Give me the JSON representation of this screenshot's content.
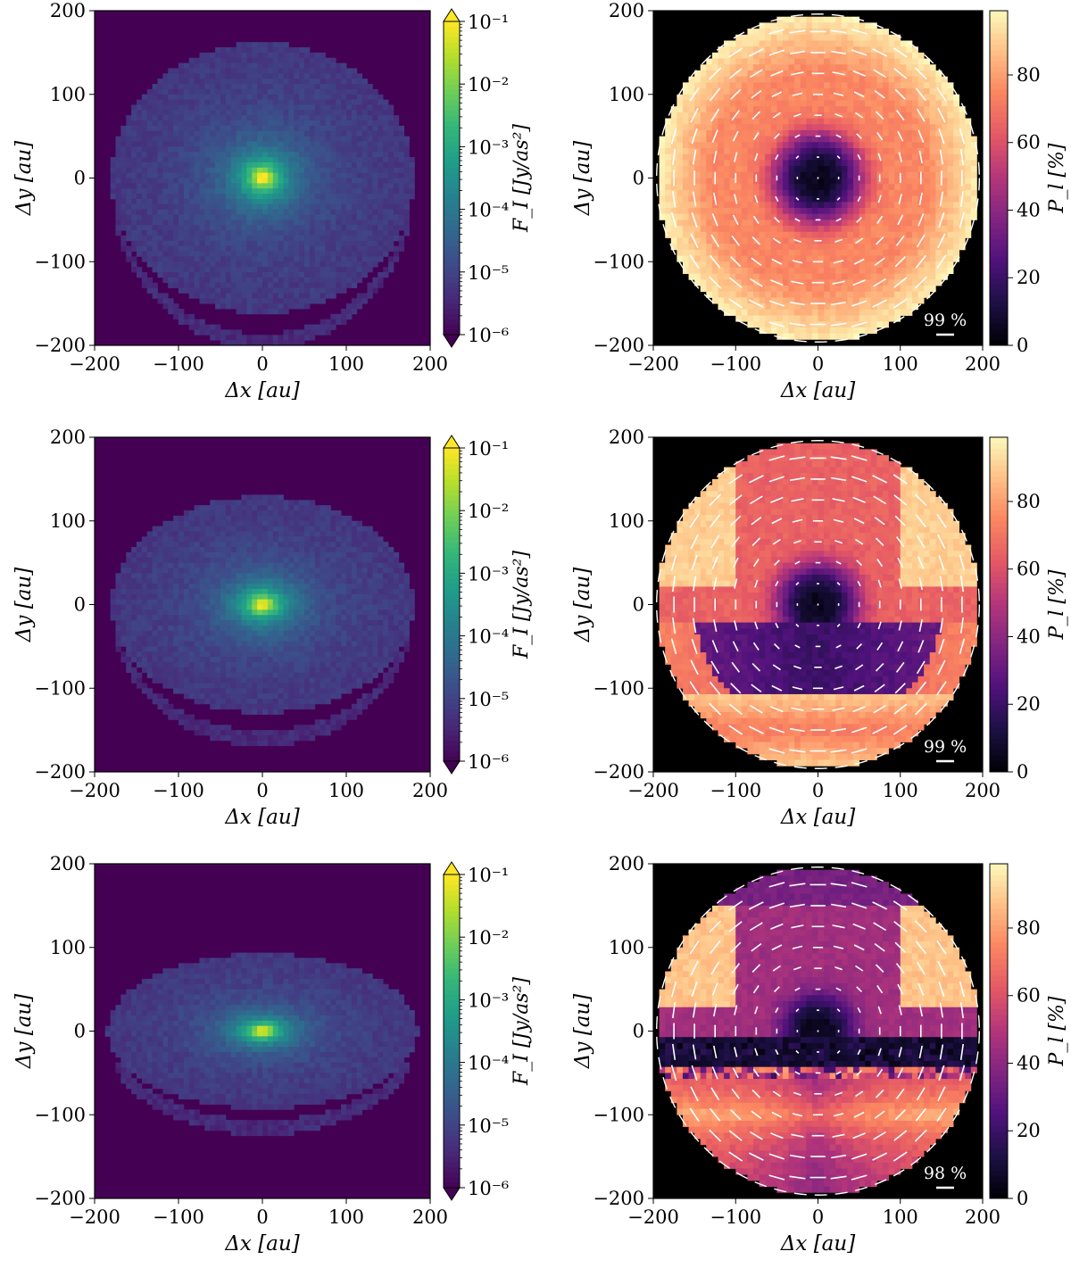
{
  "panel_common": {
    "xlabel": "Δx [au]",
    "ylabel": "Δy [au]",
    "xticks": [
      -200,
      -100,
      0,
      100,
      200
    ],
    "yticks": [
      -200,
      -100,
      0,
      100,
      200
    ],
    "flux_cbar_label": "F_I [Jy/as²]",
    "flux_cbar_ticks": [
      "10⁻⁶",
      "10⁻⁵",
      "10⁻⁴",
      "10⁻³",
      "10⁻²",
      "10⁻¹"
    ],
    "pol_cbar_label": "P_l [%]",
    "pol_cbar_ticks": [
      "0",
      "20",
      "40",
      "60",
      "80"
    ],
    "colors": {
      "flux_background": "#440154",
      "viridis": [
        "#440154",
        "#482878",
        "#3e4a89",
        "#31688e",
        "#26828e",
        "#1f9e89",
        "#35b779",
        "#6ece58",
        "#b5de2b",
        "#fde725"
      ],
      "magma": [
        "#000004",
        "#1c1044",
        "#4f127b",
        "#812581",
        "#b5367a",
        "#e55964",
        "#fb8761",
        "#fec287",
        "#fcfdbf"
      ],
      "pol_background": "#000000",
      "vector": "#ffffff"
    }
  },
  "chart_data": [
    {
      "type": "heatmap",
      "panel": "flux-row1",
      "quantity": "F_I",
      "units": "Jy/as²",
      "scale": "log",
      "clim": [
        1e-06,
        0.1
      ],
      "xlim": [
        -200,
        200
      ],
      "ylim": [
        -200,
        200
      ],
      "disk_axis_ratio": 0.9,
      "disk_radius_au": 180,
      "peak_center_au": [
        0,
        0
      ],
      "ring_offset_au": -195
    },
    {
      "type": "heatmap",
      "panel": "pol-row1",
      "quantity": "P_l",
      "units": "%",
      "clim": [
        0,
        100
      ],
      "xlim": [
        -200,
        200
      ],
      "ylim": [
        -200,
        200
      ],
      "scale_bar_label": "99 %",
      "max_polarization_percent": 99
    },
    {
      "type": "heatmap",
      "panel": "flux-row2",
      "quantity": "F_I",
      "units": "Jy/as²",
      "scale": "log",
      "clim": [
        1e-06,
        0.1
      ],
      "xlim": [
        -200,
        200
      ],
      "ylim": [
        -200,
        200
      ],
      "disk_axis_ratio": 0.72,
      "disk_radius_au": 180,
      "peak_center_au": [
        0,
        0
      ],
      "ring_offset_au": -160
    },
    {
      "type": "heatmap",
      "panel": "pol-row2",
      "quantity": "P_l",
      "units": "%",
      "clim": [
        0,
        100
      ],
      "xlim": [
        -200,
        200
      ],
      "ylim": [
        -200,
        200
      ],
      "scale_bar_label": "99 %",
      "max_polarization_percent": 99
    },
    {
      "type": "heatmap",
      "panel": "flux-row3",
      "quantity": "F_I",
      "units": "Jy/as²",
      "scale": "log",
      "clim": [
        1e-06,
        0.1
      ],
      "xlim": [
        -200,
        200
      ],
      "ylim": [
        -200,
        200
      ],
      "disk_axis_ratio": 0.5,
      "disk_radius_au": 185,
      "peak_center_au": [
        0,
        0
      ],
      "ring_offset_au": -115
    },
    {
      "type": "heatmap",
      "panel": "pol-row3",
      "quantity": "P_l",
      "units": "%",
      "clim": [
        0,
        100
      ],
      "xlim": [
        -200,
        200
      ],
      "ylim": [
        -200,
        200
      ],
      "scale_bar_label": "98 %",
      "max_polarization_percent": 98
    }
  ]
}
